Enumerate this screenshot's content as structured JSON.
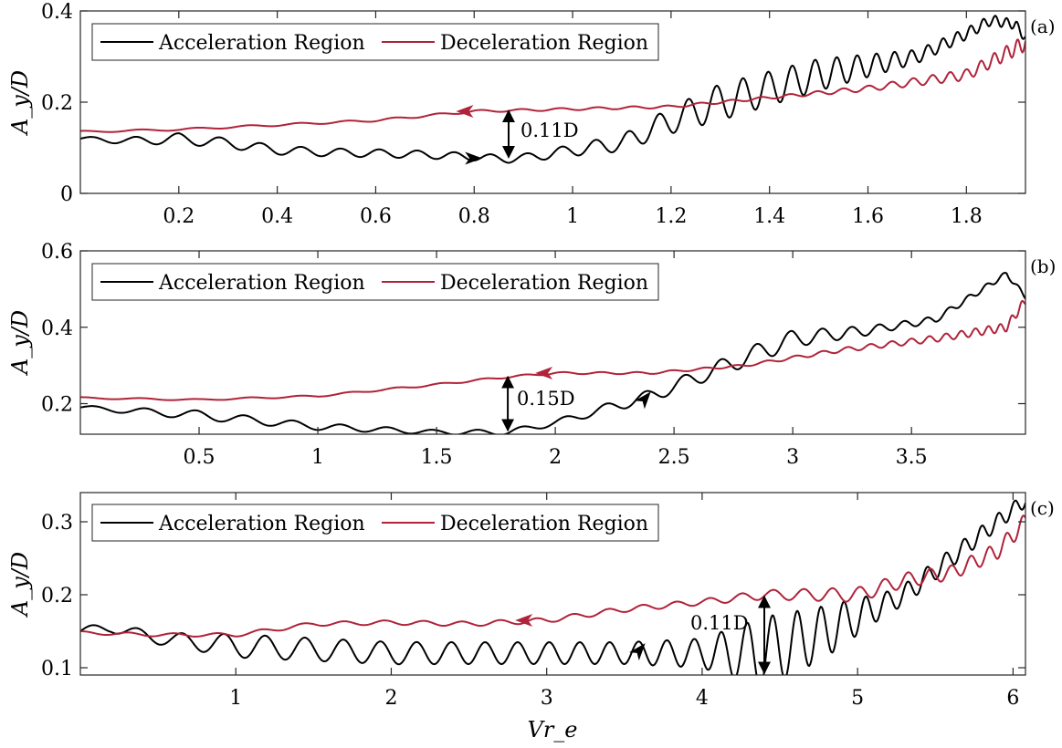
{
  "colors": {
    "acceleration": "#000000",
    "deceleration": "#b0233a",
    "axis": "#262626"
  },
  "common": {
    "xlabel": "Vr_e",
    "ylabel": "A_y/D"
  },
  "chart_data": [
    {
      "type": "line",
      "panel_label": "(a)",
      "xlabel": "",
      "ylabel": "A_y/D",
      "xlim": [
        0,
        1.92
      ],
      "ylim": [
        0,
        0.4
      ],
      "xticks": [
        0.2,
        0.4,
        0.6,
        0.8,
        1,
        1.2,
        1.4,
        1.6,
        1.8
      ],
      "xtick_labels": [
        "0.2",
        "0.4",
        "0.6",
        "0.8",
        "1",
        "1.2",
        "1.4",
        "1.6",
        "1.8"
      ],
      "yticks": [
        0,
        0.2,
        0.4
      ],
      "ytick_labels": [
        "0",
        "0.2",
        "0.4"
      ],
      "legend": {
        "position": "top-left",
        "entries": [
          "Acceleration Region",
          "Deceleration Region"
        ]
      },
      "series": [
        {
          "name": "Acceleration Region",
          "color": "#000000",
          "points": [
            [
              0,
              0.12
            ],
            [
              0.1,
              0.115
            ],
            [
              0.2,
              0.12
            ],
            [
              0.3,
              0.11
            ],
            [
              0.4,
              0.095
            ],
            [
              0.5,
              0.09
            ],
            [
              0.6,
              0.088
            ],
            [
              0.7,
              0.085
            ],
            [
              0.8,
              0.08
            ],
            [
              0.87,
              0.075
            ],
            [
              0.95,
              0.085
            ],
            [
              1.0,
              0.095
            ],
            [
              1.1,
              0.11
            ],
            [
              1.2,
              0.16
            ],
            [
              1.3,
              0.2
            ],
            [
              1.4,
              0.23
            ],
            [
              1.5,
              0.26
            ],
            [
              1.6,
              0.28
            ],
            [
              1.7,
              0.3
            ],
            [
              1.8,
              0.35
            ],
            [
              1.85,
              0.38
            ],
            [
              1.9,
              0.37
            ],
            [
              1.92,
              0.34
            ]
          ],
          "osc_amp": [
            [
              0,
              0.004
            ],
            [
              0.2,
              0.012
            ],
            [
              0.5,
              0.009
            ],
            [
              0.9,
              0.008
            ],
            [
              1.1,
              0.018
            ],
            [
              1.3,
              0.04
            ],
            [
              1.5,
              0.035
            ],
            [
              1.7,
              0.015
            ],
            [
              1.92,
              0.01
            ]
          ],
          "osc_wl": [
            [
              0,
              0.09
            ],
            [
              1.0,
              0.07
            ],
            [
              1.5,
              0.045
            ],
            [
              1.92,
              0.02
            ]
          ]
        },
        {
          "name": "Deceleration Region",
          "color": "#b0233a",
          "points": [
            [
              0,
              0.135
            ],
            [
              0.2,
              0.14
            ],
            [
              0.4,
              0.15
            ],
            [
              0.6,
              0.16
            ],
            [
              0.8,
              0.18
            ],
            [
              1.0,
              0.185
            ],
            [
              1.2,
              0.19
            ],
            [
              1.4,
              0.21
            ],
            [
              1.6,
              0.23
            ],
            [
              1.8,
              0.26
            ],
            [
              1.92,
              0.33
            ]
          ],
          "osc_amp": [
            [
              0,
              0.002
            ],
            [
              1.4,
              0.003
            ],
            [
              1.6,
              0.006
            ],
            [
              1.8,
              0.012
            ],
            [
              1.92,
              0.018
            ]
          ],
          "osc_wl": [
            [
              0,
              0.12
            ],
            [
              1.6,
              0.05
            ],
            [
              1.92,
              0.02
            ]
          ]
        }
      ],
      "direction_arrows": [
        {
          "series": "Acceleration Region",
          "x": 0.8,
          "y": 0.077,
          "dir": "right"
        },
        {
          "series": "Deceleration Region",
          "x": 0.78,
          "y": 0.18,
          "dir": "left"
        }
      ],
      "gap_annotation": {
        "x": 0.87,
        "y1": 0.075,
        "y2": 0.185,
        "label": "0.11D"
      }
    },
    {
      "type": "line",
      "panel_label": "(b)",
      "xlabel": "",
      "ylabel": "A_y/D",
      "xlim": [
        0,
        3.98
      ],
      "ylim": [
        0.12,
        0.6
      ],
      "xticks": [
        0.5,
        1,
        1.5,
        2,
        2.5,
        3,
        3.5
      ],
      "xtick_labels": [
        "0.5",
        "1",
        "1.5",
        "2",
        "2.5",
        "3",
        "3.5"
      ],
      "yticks": [
        0.2,
        0.4,
        0.6
      ],
      "ytick_labels": [
        "0.2",
        "0.4",
        "0.6"
      ],
      "legend": {
        "position": "top-left",
        "entries": [
          "Acceleration Region",
          "Deceleration Region"
        ]
      },
      "series": [
        {
          "name": "Acceleration Region",
          "color": "#000000",
          "points": [
            [
              0,
              0.19
            ],
            [
              0.5,
              0.17
            ],
            [
              1.0,
              0.14
            ],
            [
              1.5,
              0.125
            ],
            [
              1.8,
              0.125
            ],
            [
              2.0,
              0.15
            ],
            [
              2.4,
              0.22
            ],
            [
              2.6,
              0.27
            ],
            [
              2.8,
              0.32
            ],
            [
              3.0,
              0.37
            ],
            [
              3.3,
              0.39
            ],
            [
              3.6,
              0.42
            ],
            [
              3.8,
              0.5
            ],
            [
              3.9,
              0.54
            ],
            [
              3.98,
              0.48
            ]
          ],
          "osc_amp": [
            [
              0,
              0.005
            ],
            [
              0.5,
              0.012
            ],
            [
              1.5,
              0.006
            ],
            [
              2.0,
              0.008
            ],
            [
              2.5,
              0.018
            ],
            [
              2.9,
              0.025
            ],
            [
              3.4,
              0.01
            ],
            [
              3.98,
              0.006
            ]
          ],
          "osc_wl": [
            [
              0,
              0.22
            ],
            [
              2.0,
              0.18
            ],
            [
              3.0,
              0.14
            ],
            [
              3.98,
              0.06
            ]
          ]
        },
        {
          "name": "Deceleration Region",
          "color": "#b0233a",
          "points": [
            [
              0,
              0.215
            ],
            [
              0.5,
              0.21
            ],
            [
              1.0,
              0.22
            ],
            [
              1.5,
              0.25
            ],
            [
              1.8,
              0.27
            ],
            [
              2.0,
              0.28
            ],
            [
              2.4,
              0.28
            ],
            [
              2.8,
              0.3
            ],
            [
              3.2,
              0.34
            ],
            [
              3.6,
              0.37
            ],
            [
              3.9,
              0.4
            ],
            [
              3.98,
              0.47
            ]
          ],
          "osc_amp": [
            [
              0,
              0.002
            ],
            [
              2.8,
              0.003
            ],
            [
              3.4,
              0.007
            ],
            [
              3.98,
              0.012
            ]
          ],
          "osc_wl": [
            [
              0,
              0.25
            ],
            [
              3.0,
              0.12
            ],
            [
              3.98,
              0.04
            ]
          ]
        }
      ],
      "direction_arrows": [
        {
          "series": "Acceleration Region",
          "x": 2.38,
          "y": 0.215,
          "dir": "up-right"
        },
        {
          "series": "Deceleration Region",
          "x": 1.95,
          "y": 0.28,
          "dir": "left"
        }
      ],
      "gap_annotation": {
        "x": 1.8,
        "y1": 0.125,
        "y2": 0.275,
        "label": "0.15D"
      }
    },
    {
      "type": "line",
      "panel_label": "(c)",
      "xlabel": "Vr_e",
      "ylabel": "A_y/D",
      "xlim": [
        0,
        6.08
      ],
      "ylim": [
        0.09,
        0.34
      ],
      "xticks": [
        1,
        2,
        3,
        4,
        5,
        6
      ],
      "xtick_labels": [
        "1",
        "2",
        "3",
        "4",
        "5",
        "6"
      ],
      "yticks": [
        0.1,
        0.2,
        0.3
      ],
      "ytick_labels": [
        "0.1",
        "0.2",
        "0.3"
      ],
      "legend": {
        "position": "top-left",
        "entries": [
          "Acceleration Region",
          "Deceleration Region"
        ]
      },
      "series": [
        {
          "name": "Acceleration Region",
          "color": "#000000",
          "points": [
            [
              0,
              0.15
            ],
            [
              0.2,
              0.155
            ],
            [
              0.5,
              0.14
            ],
            [
              1.0,
              0.13
            ],
            [
              1.5,
              0.125
            ],
            [
              2.0,
              0.12
            ],
            [
              2.5,
              0.12
            ],
            [
              3.0,
              0.12
            ],
            [
              3.5,
              0.12
            ],
            [
              4.0,
              0.12
            ],
            [
              4.4,
              0.12
            ],
            [
              4.8,
              0.15
            ],
            [
              5.0,
              0.17
            ],
            [
              5.3,
              0.2
            ],
            [
              5.6,
              0.25
            ],
            [
              5.9,
              0.3
            ],
            [
              6.08,
              0.33
            ]
          ],
          "osc_amp": [
            [
              0,
              0.006
            ],
            [
              0.5,
              0.008
            ],
            [
              1.0,
              0.016
            ],
            [
              2.5,
              0.015
            ],
            [
              3.5,
              0.015
            ],
            [
              4.0,
              0.02
            ],
            [
              4.4,
              0.05
            ],
            [
              4.8,
              0.035
            ],
            [
              5.2,
              0.015
            ],
            [
              6.08,
              0.01
            ]
          ],
          "osc_wl": [
            [
              0,
              0.3
            ],
            [
              3.0,
              0.2
            ],
            [
              4.5,
              0.16
            ],
            [
              6.08,
              0.1
            ]
          ]
        },
        {
          "name": "Deceleration Region",
          "color": "#b0233a",
          "points": [
            [
              0,
              0.148
            ],
            [
              0.5,
              0.145
            ],
            [
              1.0,
              0.145
            ],
            [
              1.5,
              0.16
            ],
            [
              2.0,
              0.162
            ],
            [
              2.5,
              0.16
            ],
            [
              3.0,
              0.165
            ],
            [
              3.5,
              0.18
            ],
            [
              4.0,
              0.19
            ],
            [
              4.4,
              0.2
            ],
            [
              4.8,
              0.2
            ],
            [
              5.0,
              0.2
            ],
            [
              5.3,
              0.22
            ],
            [
              5.6,
              0.23
            ],
            [
              5.9,
              0.26
            ],
            [
              6.08,
              0.3
            ]
          ],
          "osc_amp": [
            [
              0,
              0.002
            ],
            [
              4.0,
              0.004
            ],
            [
              5.0,
              0.01
            ],
            [
              5.6,
              0.01
            ],
            [
              6.08,
              0.012
            ]
          ],
          "osc_wl": [
            [
              0,
              0.3
            ],
            [
              4.5,
              0.2
            ],
            [
              6.08,
              0.1
            ]
          ]
        }
      ],
      "direction_arrows": [
        {
          "series": "Acceleration Region",
          "x": 3.6,
          "y": 0.125,
          "dir": "up-right"
        },
        {
          "series": "Deceleration Region",
          "x": 2.85,
          "y": 0.165,
          "dir": "left"
        }
      ],
      "gap_annotation": {
        "x": 4.4,
        "y1": 0.09,
        "y2": 0.2,
        "label": "0.11D"
      }
    }
  ]
}
